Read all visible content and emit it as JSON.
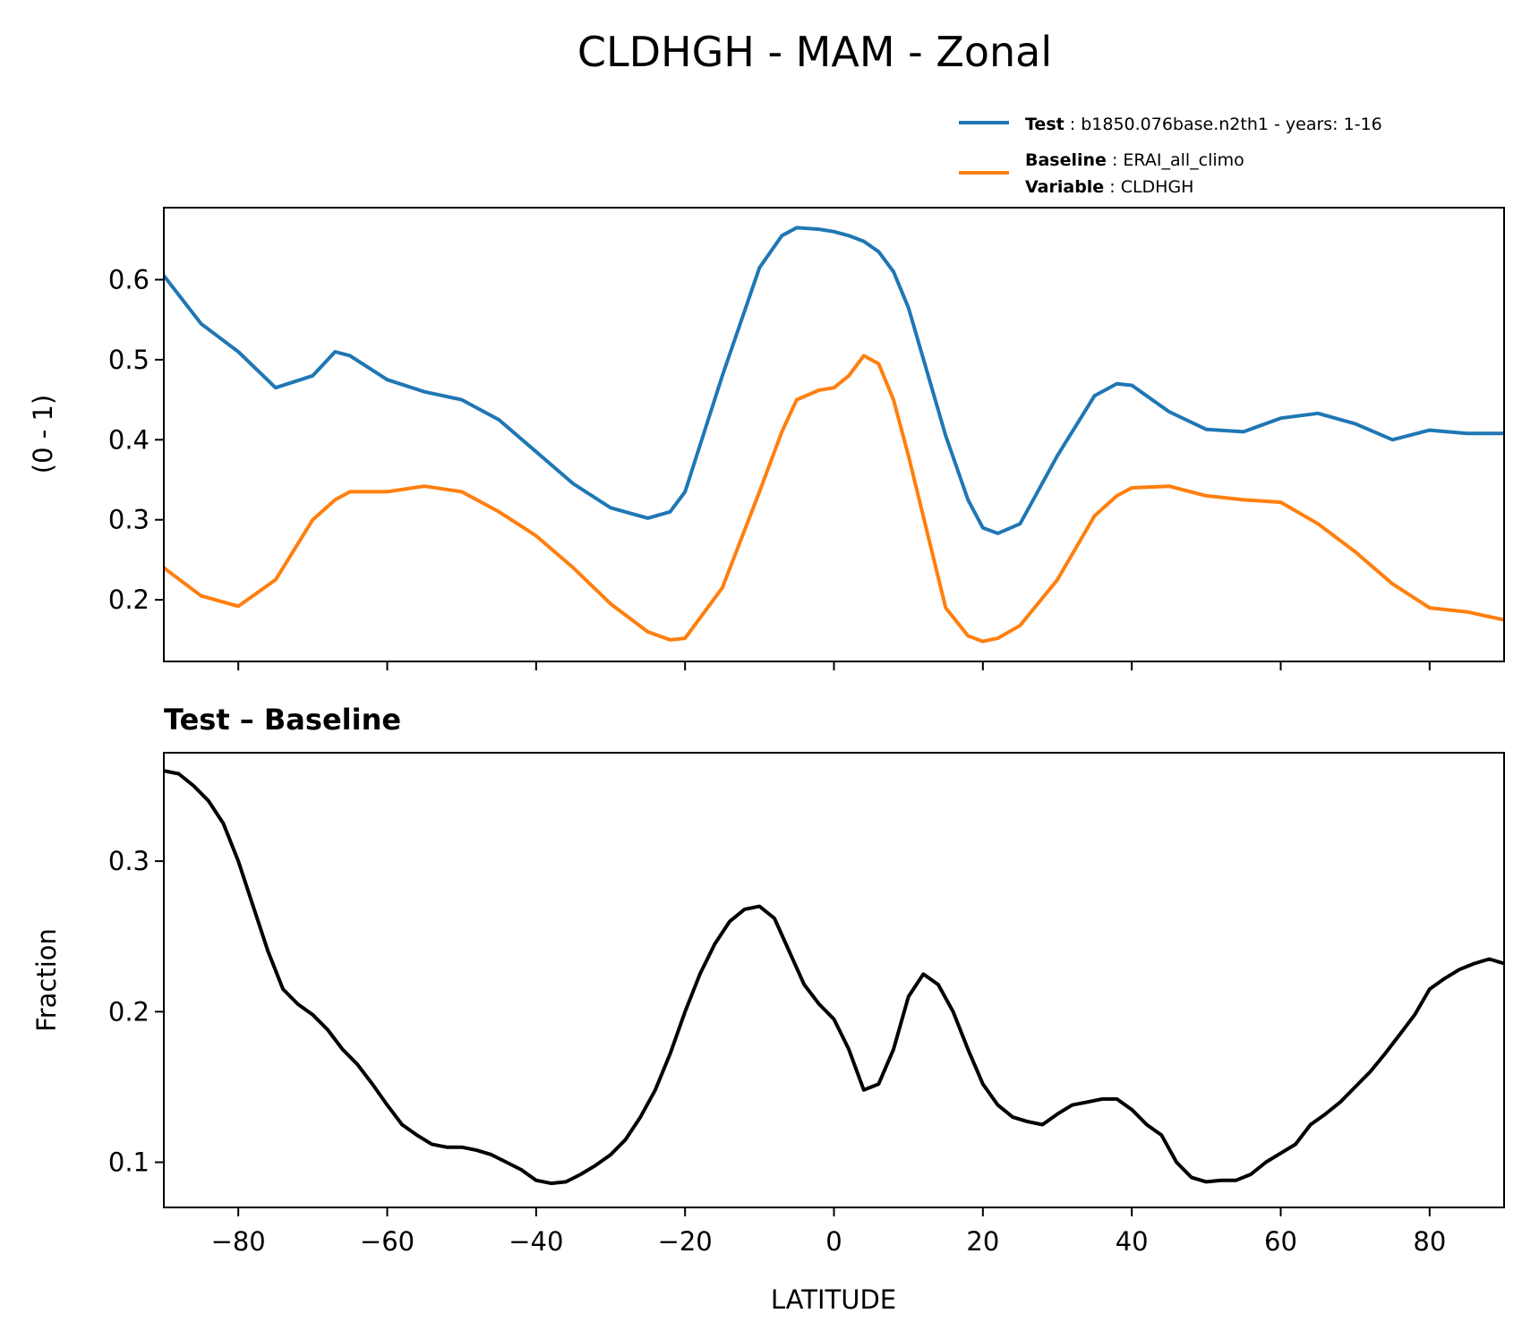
{
  "chart_data": [
    {
      "type": "line",
      "title": "CLDHGH - MAM - Zonal",
      "xlabel": "",
      "ylabel": "(0 - 1)",
      "xlim": [
        -90,
        90
      ],
      "ylim": [
        0.123,
        0.69
      ],
      "yticks": [
        0.2,
        0.3,
        0.4,
        0.5,
        0.6
      ],
      "ytick_labels": [
        "0.2",
        "0.3",
        "0.4",
        "0.5",
        "0.6"
      ],
      "legend": [
        {
          "label": "Test",
          "value": "b1850.076base.n2th1 - years: 1-16",
          "color": "#1f77b4"
        },
        {
          "label": "Baseline",
          "value": "ERAI_all_climo",
          "color": "#ff7f0e"
        },
        {
          "label": "Variable",
          "value": "CLDHGH"
        }
      ],
      "x": [
        -90,
        -85,
        -80,
        -75,
        -70,
        -67,
        -65,
        -60,
        -55,
        -50,
        -45,
        -40,
        -35,
        -30,
        -25,
        -22,
        -20,
        -15,
        -10,
        -7,
        -5,
        -2,
        0,
        2,
        4,
        6,
        8,
        10,
        15,
        18,
        20,
        22,
        25,
        30,
        35,
        38,
        40,
        45,
        50,
        55,
        60,
        65,
        70,
        75,
        80,
        85,
        90
      ],
      "series": [
        {
          "name": "Test",
          "color": "#1f77b4",
          "values": [
            0.605,
            0.545,
            0.51,
            0.465,
            0.48,
            0.51,
            0.505,
            0.475,
            0.46,
            0.45,
            0.425,
            0.385,
            0.345,
            0.315,
            0.302,
            0.31,
            0.335,
            0.48,
            0.615,
            0.655,
            0.665,
            0.663,
            0.66,
            0.655,
            0.648,
            0.635,
            0.61,
            0.565,
            0.405,
            0.325,
            0.29,
            0.283,
            0.295,
            0.38,
            0.455,
            0.47,
            0.468,
            0.435,
            0.413,
            0.41,
            0.427,
            0.433,
            0.42,
            0.4,
            0.412,
            0.408,
            0.408
          ]
        },
        {
          "name": "Baseline",
          "color": "#ff7f0e",
          "values": [
            0.24,
            0.205,
            0.192,
            0.225,
            0.3,
            0.325,
            0.335,
            0.335,
            0.342,
            0.335,
            0.31,
            0.28,
            0.24,
            0.195,
            0.16,
            0.15,
            0.152,
            0.215,
            0.335,
            0.41,
            0.45,
            0.462,
            0.465,
            0.48,
            0.505,
            0.495,
            0.45,
            0.38,
            0.19,
            0.155,
            0.148,
            0.152,
            0.168,
            0.225,
            0.305,
            0.33,
            0.34,
            0.342,
            0.33,
            0.325,
            0.322,
            0.295,
            0.26,
            0.22,
            0.19,
            0.185,
            0.175
          ]
        }
      ]
    },
    {
      "type": "line",
      "title": "Test – Baseline",
      "xlabel": "LATITUDE",
      "ylabel": "Fraction",
      "xlim": [
        -90,
        90
      ],
      "ylim": [
        0.07,
        0.372
      ],
      "xticks": [
        -80,
        -60,
        -40,
        -20,
        0,
        20,
        40,
        60,
        80
      ],
      "xtick_labels": [
        "−80",
        "−60",
        "−40",
        "−20",
        "0",
        "20",
        "40",
        "60",
        "80"
      ],
      "yticks": [
        0.1,
        0.2,
        0.3
      ],
      "ytick_labels": [
        "0.1",
        "0.2",
        "0.3"
      ],
      "x": [
        -90,
        -88,
        -86,
        -84,
        -82,
        -80,
        -78,
        -76,
        -74,
        -72,
        -70,
        -68,
        -66,
        -64,
        -62,
        -60,
        -58,
        -56,
        -54,
        -52,
        -50,
        -48,
        -46,
        -44,
        -42,
        -40,
        -38,
        -36,
        -34,
        -32,
        -30,
        -28,
        -26,
        -24,
        -22,
        -20,
        -18,
        -16,
        -14,
        -12,
        -10,
        -8,
        -6,
        -4,
        -2,
        0,
        2,
        4,
        6,
        8,
        10,
        12,
        14,
        16,
        18,
        20,
        22,
        24,
        26,
        28,
        30,
        32,
        34,
        36,
        38,
        40,
        42,
        44,
        46,
        48,
        50,
        52,
        54,
        56,
        58,
        60,
        62,
        64,
        66,
        68,
        70,
        72,
        74,
        76,
        78,
        80,
        82,
        84,
        86,
        88,
        90
      ],
      "series": [
        {
          "name": "Test – Baseline",
          "color": "#000000",
          "values": [
            0.36,
            0.358,
            0.35,
            0.34,
            0.325,
            0.3,
            0.27,
            0.24,
            0.215,
            0.205,
            0.198,
            0.188,
            0.175,
            0.165,
            0.152,
            0.138,
            0.125,
            0.118,
            0.112,
            0.11,
            0.11,
            0.108,
            0.105,
            0.1,
            0.095,
            0.088,
            0.086,
            0.087,
            0.092,
            0.098,
            0.105,
            0.115,
            0.13,
            0.148,
            0.172,
            0.2,
            0.225,
            0.245,
            0.26,
            0.268,
            0.27,
            0.262,
            0.24,
            0.218,
            0.205,
            0.195,
            0.175,
            0.148,
            0.152,
            0.175,
            0.21,
            0.225,
            0.218,
            0.2,
            0.175,
            0.152,
            0.138,
            0.13,
            0.127,
            0.125,
            0.132,
            0.138,
            0.14,
            0.142,
            0.142,
            0.135,
            0.125,
            0.118,
            0.1,
            0.09,
            0.087,
            0.088,
            0.088,
            0.092,
            0.1,
            0.106,
            0.112,
            0.125,
            0.132,
            0.14,
            0.15,
            0.16,
            0.172,
            0.185,
            0.198,
            0.215,
            0.222,
            0.228,
            0.232,
            0.235,
            0.232
          ]
        }
      ]
    }
  ]
}
